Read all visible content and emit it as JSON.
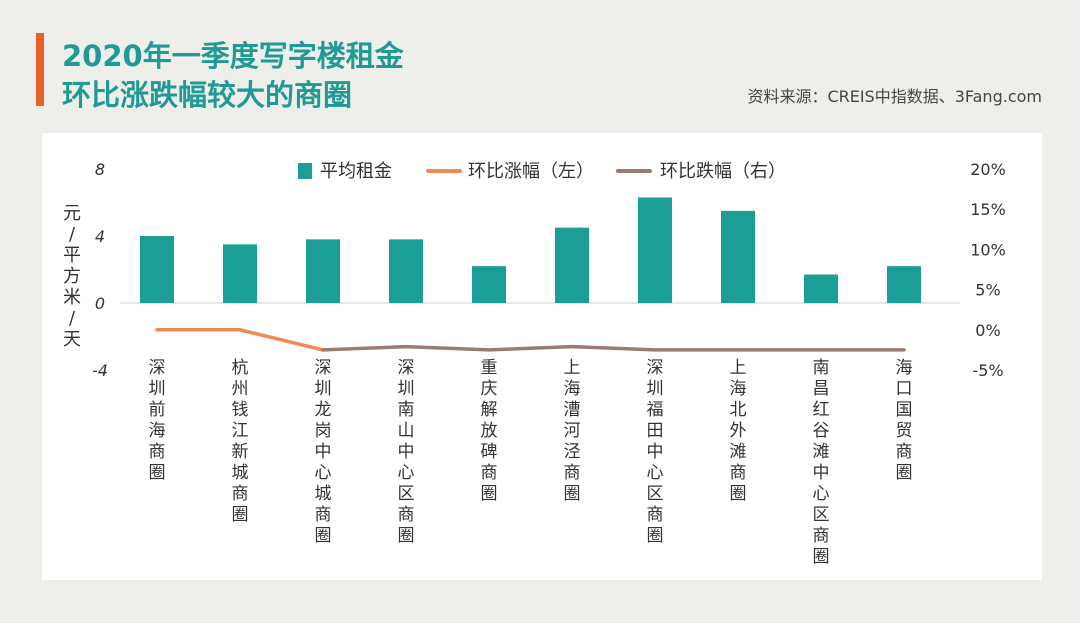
{
  "title_line1": "2020年一季度写字楼租金",
  "title_line2": "环比涨跌幅较大的商圈",
  "source": "资料来源：CREIS中指数据、3Fang.com",
  "colors": {
    "accent": "#e8632a",
    "title": "#1f9a94",
    "bar": "#1a9e95",
    "rise": "#f08a54",
    "fall": "#9a7b74"
  },
  "chart_data": {
    "type": "bar",
    "categories": [
      "深圳前海商圈",
      "杭州钱江新城商圈",
      "深圳龙岗中心城商圈",
      "深圳南山中心区商圈",
      "重庆解放碑商圈",
      "上海漕河泾商圈",
      "深圳福田中心区商圈",
      "上海北外滩商圈",
      "南昌红谷滩中心区商圈",
      "海口国贸商圈"
    ],
    "ylabel": "元/平方米/天",
    "ylim_left": [
      -4,
      8
    ],
    "yticks_left": [
      "8",
      "4",
      "0",
      "-4"
    ],
    "ylim_right": [
      -5,
      20
    ],
    "yticks_right": [
      "20%",
      "15%",
      "10%",
      "5%",
      "0%",
      "-5%"
    ],
    "legend": [
      "平均租金",
      "环比涨幅（左）",
      "环比跌幅（右）"
    ],
    "legend_position": "top-center",
    "series": [
      {
        "name": "平均租金",
        "type": "bar",
        "axis": "left",
        "values": [
          4.0,
          3.5,
          3.8,
          3.8,
          2.2,
          4.5,
          6.3,
          5.5,
          1.7,
          2.2
        ]
      },
      {
        "name": "环比涨幅（左）",
        "type": "line",
        "axis": "right",
        "values": [
          0.0,
          0.0,
          null,
          null,
          null,
          null,
          null,
          null,
          null,
          null
        ]
      },
      {
        "name": "环比跌幅（右）",
        "type": "line",
        "axis": "right",
        "values": [
          null,
          null,
          -2.5,
          -2.1,
          -2.5,
          -2.1,
          -2.5,
          -2.5,
          -2.5,
          -2.5
        ]
      }
    ]
  }
}
